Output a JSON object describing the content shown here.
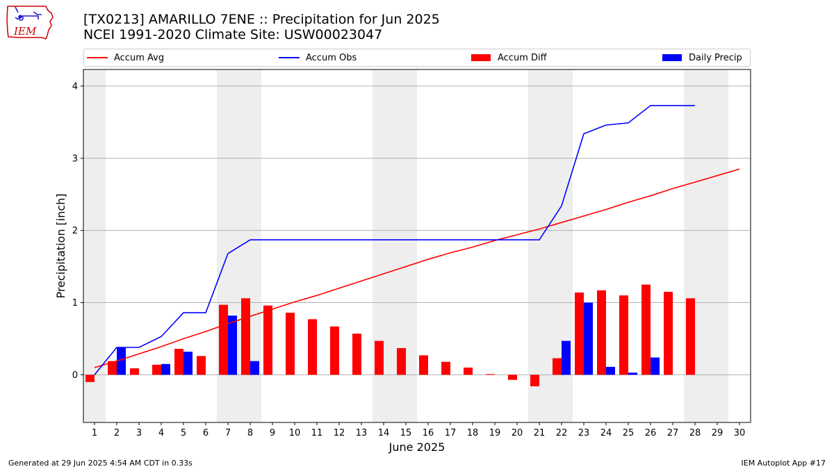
{
  "logo": {
    "text": "IEM",
    "icon": "iowa-state-weather-logo",
    "color": "#cc0000"
  },
  "header": {
    "title_line1": "[TX0213] AMARILLO 7ENE :: Precipitation for Jun 2025",
    "title_line2": "NCEI 1991-2020 Climate Site: USW00023047"
  },
  "legend": {
    "position": "top (above plot)",
    "items": [
      {
        "label": "Accum Avg",
        "color": "#ff0000",
        "kind": "line"
      },
      {
        "label": "Accum Obs",
        "color": "#0000ff",
        "kind": "line"
      },
      {
        "label": "Accum Diff",
        "color": "#ff0000",
        "kind": "bar"
      },
      {
        "label": "Daily Precip",
        "color": "#0000ff",
        "kind": "bar"
      }
    ]
  },
  "chart_data": {
    "type": "bar",
    "xlabel": "June 2025",
    "ylabel": "Precipitation [inch]",
    "xlim": [
      0.5,
      30.5
    ],
    "ylim": [
      -0.66,
      4.23
    ],
    "yticks": [
      0,
      1,
      2,
      3,
      4
    ],
    "grid": "horizontal",
    "weekend_shading": [
      [
        0.5,
        1.5
      ],
      [
        6.5,
        8.5
      ],
      [
        13.5,
        15.5
      ],
      [
        20.5,
        22.5
      ],
      [
        27.5,
        29.5
      ]
    ],
    "categories": [
      "1",
      "2",
      "3",
      "4",
      "5",
      "6",
      "7",
      "8",
      "9",
      "10",
      "11",
      "12",
      "13",
      "14",
      "15",
      "16",
      "17",
      "18",
      "19",
      "20",
      "21",
      "22",
      "23",
      "24",
      "25",
      "26",
      "27",
      "28",
      "29",
      "30"
    ],
    "series": [
      {
        "name": "Accum Avg",
        "type": "line",
        "color": "#ff0000",
        "x": [
          1,
          2,
          3,
          4,
          5,
          6,
          7,
          8,
          9,
          10,
          11,
          12,
          13,
          14,
          15,
          16,
          17,
          18,
          19,
          20,
          21,
          22,
          23,
          24,
          25,
          26,
          27,
          28,
          29,
          30
        ],
        "values": [
          0.1,
          0.19,
          0.29,
          0.39,
          0.5,
          0.6,
          0.71,
          0.81,
          0.91,
          1.01,
          1.1,
          1.2,
          1.3,
          1.4,
          1.5,
          1.6,
          1.69,
          1.77,
          1.86,
          1.94,
          2.02,
          2.11,
          2.2,
          2.29,
          2.39,
          2.48,
          2.58,
          2.67,
          2.76,
          2.85
        ]
      },
      {
        "name": "Accum Obs",
        "type": "line",
        "color": "#0000ff",
        "x": [
          1,
          2,
          3,
          4,
          5,
          6,
          7,
          8,
          9,
          10,
          11,
          12,
          13,
          14,
          15,
          16,
          17,
          18,
          19,
          20,
          21,
          22,
          23,
          24,
          25,
          26,
          27,
          28
        ],
        "values": [
          0.0,
          0.38,
          0.38,
          0.53,
          0.86,
          0.86,
          1.68,
          1.87,
          1.87,
          1.87,
          1.87,
          1.87,
          1.87,
          1.87,
          1.87,
          1.87,
          1.87,
          1.87,
          1.87,
          1.87,
          1.87,
          2.34,
          3.34,
          3.46,
          3.49,
          3.73,
          3.73,
          3.73
        ]
      },
      {
        "name": "Accum Diff",
        "type": "bar",
        "color": "#ff0000",
        "x": [
          1,
          2,
          3,
          4,
          5,
          6,
          7,
          8,
          9,
          10,
          11,
          12,
          13,
          14,
          15,
          16,
          17,
          18,
          19,
          20,
          21,
          22,
          23,
          24,
          25,
          26,
          27,
          28
        ],
        "values": [
          -0.1,
          0.19,
          0.09,
          0.14,
          0.36,
          0.26,
          0.97,
          1.06,
          0.96,
          0.86,
          0.77,
          0.67,
          0.57,
          0.47,
          0.37,
          0.27,
          0.18,
          0.1,
          0.01,
          -0.07,
          -0.16,
          0.23,
          1.14,
          1.17,
          1.1,
          1.25,
          1.15,
          1.06
        ]
      },
      {
        "name": "Daily Precip",
        "type": "bar",
        "color": "#0000ff",
        "x": [
          1,
          2,
          3,
          4,
          5,
          6,
          7,
          8,
          9,
          10,
          11,
          12,
          13,
          14,
          15,
          16,
          17,
          18,
          19,
          20,
          21,
          22,
          23,
          24,
          25,
          26,
          27,
          28
        ],
        "values": [
          0.0,
          0.38,
          0.0,
          0.15,
          0.32,
          0.0,
          0.82,
          0.19,
          0.0,
          0.0,
          0.0,
          0.0,
          0.0,
          0.0,
          0.0,
          0.0,
          0.0,
          0.0,
          0.0,
          0.0,
          0.0,
          0.47,
          1.0,
          0.11,
          0.03,
          0.24,
          0.0,
          0.0
        ]
      }
    ]
  },
  "footer": {
    "generated": "Generated at 29 Jun 2025 4:54 AM CDT in 0.33s",
    "app": "IEM Autoplot App #17"
  }
}
